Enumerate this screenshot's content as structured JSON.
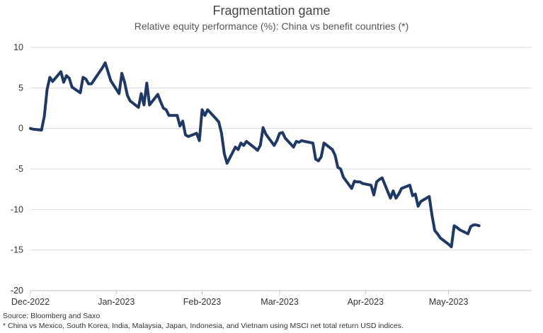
{
  "chart_data": {
    "type": "line",
    "title": "Fragmentation game",
    "subtitle": "Relative equity performance (%): China vs benefit countries (*)",
    "xlabel": "",
    "ylabel": "",
    "ylim": [
      -20,
      10
    ],
    "yticks": [
      10,
      5,
      0,
      -5,
      -10,
      -15,
      -20
    ],
    "xlim": [
      "2022-12-01",
      "2023-05-31"
    ],
    "xticks": [
      {
        "label": "Dec-2022",
        "date": "2022-12-01"
      },
      {
        "label": "Jan-2023",
        "date": "2023-01-01"
      },
      {
        "label": "Feb-2023",
        "date": "2023-02-01"
      },
      {
        "label": "Mar-2023",
        "date": "2023-03-01"
      },
      {
        "label": "Apr-2023",
        "date": "2023-04-01"
      },
      {
        "label": "May-2023",
        "date": "2023-05-01"
      }
    ],
    "grid": true,
    "line_color": "#1f3864",
    "series": [
      {
        "x": [
          "2022-12-01",
          "2022-12-02",
          "2022-12-05",
          "2022-12-06",
          "2022-12-07",
          "2022-12-08",
          "2022-12-09",
          "2022-12-12",
          "2022-12-13",
          "2022-12-14",
          "2022-12-15",
          "2022-12-16",
          "2022-12-19",
          "2022-12-20",
          "2022-12-21",
          "2022-12-22",
          "2022-12-23",
          "2022-12-27",
          "2022-12-28",
          "2022-12-29",
          "2022-12-30",
          "2023-01-02",
          "2023-01-03",
          "2023-01-04",
          "2023-01-05",
          "2023-01-06",
          "2023-01-09",
          "2023-01-10",
          "2023-01-11",
          "2023-01-12",
          "2023-01-13",
          "2023-01-16",
          "2023-01-17",
          "2023-01-18",
          "2023-01-19",
          "2023-01-20",
          "2023-01-23",
          "2023-01-24",
          "2023-01-25",
          "2023-01-26",
          "2023-01-27",
          "2023-01-30",
          "2023-01-31",
          "2023-02-01",
          "2023-02-02",
          "2023-02-03",
          "2023-02-06",
          "2023-02-07",
          "2023-02-08",
          "2023-02-09",
          "2023-02-10",
          "2023-02-13",
          "2023-02-14",
          "2023-02-15",
          "2023-02-16",
          "2023-02-17",
          "2023-02-20",
          "2023-02-21",
          "2023-02-22",
          "2023-02-23",
          "2023-02-24",
          "2023-02-27",
          "2023-02-28",
          "2023-03-01",
          "2023-03-02",
          "2023-03-03",
          "2023-03-06",
          "2023-03-07",
          "2023-03-08",
          "2023-03-09",
          "2023-03-10",
          "2023-03-13",
          "2023-03-14",
          "2023-03-15",
          "2023-03-16",
          "2023-03-17",
          "2023-03-20",
          "2023-03-21",
          "2023-03-22",
          "2023-03-23",
          "2023-03-24",
          "2023-03-27",
          "2023-03-28",
          "2023-03-29",
          "2023-03-30",
          "2023-03-31",
          "2023-04-03",
          "2023-04-04",
          "2023-04-05",
          "2023-04-06",
          "2023-04-07",
          "2023-04-10",
          "2023-04-11",
          "2023-04-12",
          "2023-04-13",
          "2023-04-14",
          "2023-04-17",
          "2023-04-18",
          "2023-04-19",
          "2023-04-20",
          "2023-04-21",
          "2023-04-24",
          "2023-04-25",
          "2023-04-26",
          "2023-04-27",
          "2023-04-28",
          "2023-05-01",
          "2023-05-02",
          "2023-05-03",
          "2023-05-04",
          "2023-05-05",
          "2023-05-08",
          "2023-05-09",
          "2023-05-10",
          "2023-05-11",
          "2023-05-12"
        ],
        "values": [
          0.0,
          -0.1,
          -0.2,
          1.5,
          4.8,
          6.3,
          5.8,
          7.0,
          5.7,
          6.5,
          6.2,
          5.1,
          4.4,
          6.3,
          6.1,
          5.5,
          5.5,
          7.5,
          8.1,
          7.0,
          5.9,
          4.3,
          6.8,
          5.7,
          4.1,
          3.4,
          2.6,
          4.3,
          2.9,
          5.6,
          2.9,
          4.2,
          3.3,
          2.5,
          2.3,
          1.6,
          1.6,
          0.3,
          0.9,
          -0.8,
          -1.0,
          -0.6,
          -1.5,
          2.3,
          1.6,
          2.3,
          1.2,
          0.8,
          -0.6,
          -3.1,
          -4.3,
          -2.3,
          -2.6,
          -1.8,
          -2.1,
          -1.6,
          -2.4,
          -2.7,
          -2.1,
          0.1,
          -0.7,
          -2.1,
          -1.5,
          -0.6,
          -0.5,
          -1.2,
          -2.3,
          -1.6,
          -1.7,
          -1.5,
          -1.6,
          -1.8,
          -3.8,
          -4.0,
          -3.5,
          -1.8,
          -2.6,
          -3.3,
          -4.8,
          -5.0,
          -6.0,
          -7.4,
          -6.5,
          -6.6,
          -6.6,
          -6.8,
          -7.0,
          -8.2,
          -6.6,
          -6.3,
          -6.1,
          -8.6,
          -7.7,
          -8.6,
          -8.1,
          -7.4,
          -7.0,
          -8.3,
          -8.1,
          -9.6,
          -9.0,
          -8.4,
          -10.7,
          -12.6,
          -13.0,
          -13.5,
          -14.3,
          -14.6,
          -12.0,
          -12.2,
          -12.5,
          -13.0,
          -12.1,
          -11.9,
          -11.9,
          -12.0
        ]
      }
    ]
  },
  "footer": {
    "source": "Source: Bloomberg and Saxo",
    "note": "* China vs Mexico, South Korea, India, Malaysia, Japan, Indonesia, and Vietnam using MSCI net total return USD indices."
  }
}
